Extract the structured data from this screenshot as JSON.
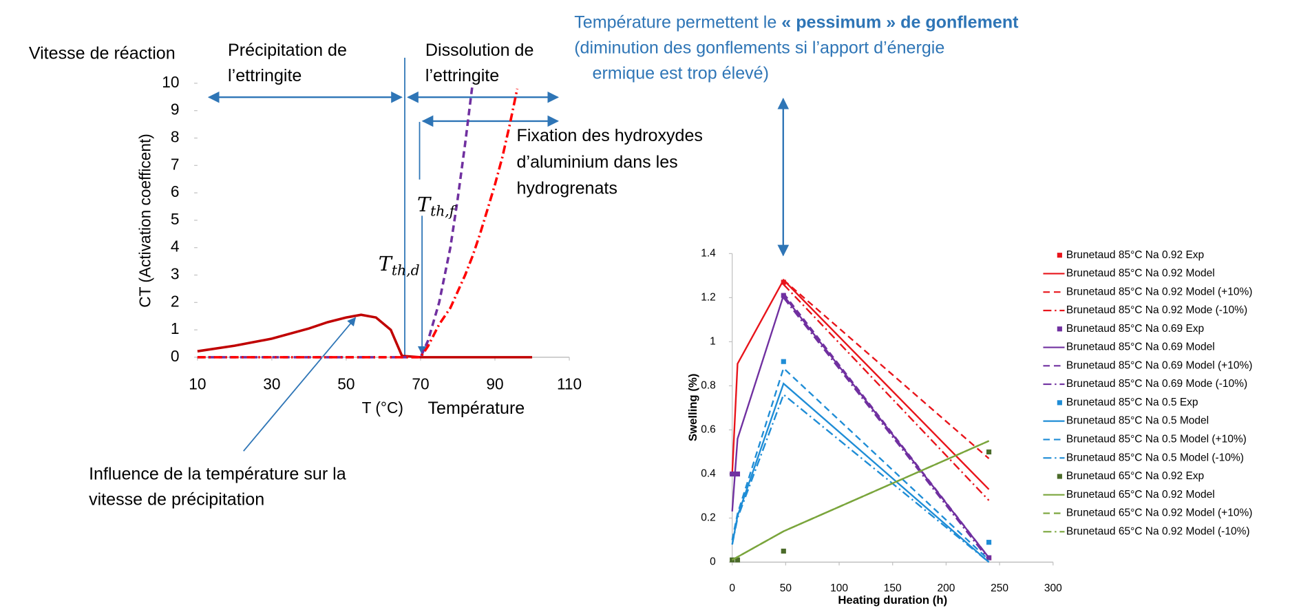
{
  "chart_data": [
    {
      "type": "line",
      "x_label": "T (°C)",
      "y_label": "CT (Activation coefficent)",
      "x": [
        10,
        20,
        30,
        40,
        45,
        50,
        54,
        58,
        62,
        65,
        70,
        72,
        75,
        78,
        80,
        82,
        84,
        86,
        88,
        90,
        92,
        94,
        96,
        100
      ],
      "xlim": [
        10,
        110
      ],
      "xticks": [
        10,
        30,
        50,
        70,
        90,
        110
      ],
      "ylim": [
        0,
        10
      ],
      "yticks": [
        0,
        1,
        2,
        3,
        4,
        5,
        6,
        7,
        8,
        9,
        10
      ],
      "series": [
        {
          "color": "#c00000",
          "style": "solid",
          "values": [
            0.22,
            0.42,
            0.68,
            1.05,
            1.28,
            1.45,
            1.55,
            1.45,
            1.0,
            0.05,
            0,
            0,
            0,
            0,
            0,
            0,
            0,
            0,
            0,
            0,
            0,
            0,
            0,
            0
          ]
        },
        {
          "color": "#7030a0",
          "style": "dashed",
          "values": [
            0,
            0,
            0,
            0,
            0,
            0,
            0,
            0,
            0,
            0,
            0,
            0.6,
            2,
            4,
            5.8,
            7.8,
            10,
            null,
            null,
            null,
            null,
            null,
            null,
            null
          ]
        },
        {
          "color": "#ff0000",
          "style": "dashdot",
          "values": [
            0,
            0,
            0,
            0,
            0,
            0,
            0,
            0,
            0,
            0,
            0,
            0.4,
            1.2,
            1.8,
            2.4,
            3,
            3.7,
            4.5,
            5.4,
            6.3,
            7.3,
            8.5,
            9.8,
            null
          ]
        }
      ],
      "annotations": [
        "Vitesse de réaction",
        "Précipitation de",
        "l’ettringite",
        "Dissolution de",
        "l’ettringite",
        "Fixation des hydroxydes",
        "d’aluminium dans les",
        "hydrogrenats",
        "Température",
        "Influence de la température sur la",
        "vitesse de précipitation"
      ],
      "math_labels": [
        {
          "main": "T",
          "sub": "th,d"
        },
        {
          "main": "T",
          "sub": "th,f"
        }
      ]
    },
    {
      "type": "line",
      "x_label": "Heating duration (h)",
      "y_label": "Swelling (%)",
      "xlim": [
        0,
        300
      ],
      "xticks": [
        0,
        50,
        100,
        150,
        200,
        250,
        300
      ],
      "ylim": [
        0,
        1.4
      ],
      "yticks": [
        0,
        0.2,
        0.4,
        0.6,
        0.8,
        1,
        1.2,
        1.4
      ],
      "annotations": [
        "Température permettent le ",
        "« pessimum » de gonflement",
        "(diminution des gonflements si l’apport d’énergie",
        "ermique est trop élevé)"
      ],
      "series": [
        {
          "name": "Brunetaud 85°C Na 0.92 Exp",
          "color": "#e8141b",
          "style": "marker",
          "x": [
            48,
            240
          ],
          "values": [
            1.27,
            0.02
          ]
        },
        {
          "name": "Brunetaud 85°C Na 0.92 Model",
          "color": "#e8141b",
          "style": "solid",
          "x": [
            0,
            5,
            48,
            240
          ],
          "values": [
            0.4,
            0.9,
            1.28,
            0.33
          ]
        },
        {
          "name": "Brunetaud 85°C Na 0.92 Model (+10%)",
          "color": "#e8141b",
          "style": "dashed",
          "x": [
            48,
            240
          ],
          "values": [
            1.28,
            0.47
          ]
        },
        {
          "name": "Brunetaud 85°C Na 0.92 Mode (-10%)",
          "color": "#e8141b",
          "style": "dashdot",
          "x": [
            48,
            240
          ],
          "values": [
            1.26,
            0.28
          ]
        },
        {
          "name": "Brunetaud 85°C Na 0.69 Exp",
          "color": "#7030a0",
          "style": "marker",
          "x": [
            0,
            5,
            48,
            240
          ],
          "values": [
            0.4,
            0.4,
            1.21,
            0.02
          ]
        },
        {
          "name": "Brunetaud 85°C Na 0.69 Model",
          "color": "#7030a0",
          "style": "solid",
          "x": [
            0,
            5,
            48,
            240
          ],
          "values": [
            0.23,
            0.56,
            1.21,
            0.02
          ]
        },
        {
          "name": "Brunetaud 85°C Na 0.69 Model (+10%)",
          "color": "#7030a0",
          "style": "dashed",
          "x": [
            48,
            240
          ],
          "values": [
            1.22,
            0.02
          ]
        },
        {
          "name": "Brunetaud 85°C Na 0.69 Mode (-10%)",
          "color": "#7030a0",
          "style": "dashdot",
          "x": [
            48,
            240
          ],
          "values": [
            1.2,
            0.01
          ]
        },
        {
          "name": "Brunetaud 85°C Na 0.5 Exp",
          "color": "#1f8dd6",
          "style": "marker",
          "x": [
            48,
            240
          ],
          "values": [
            0.91,
            0.09
          ]
        },
        {
          "name": "Brunetaud 85°C Na 0.5 Model",
          "color": "#1f8dd6",
          "style": "solid",
          "x": [
            0,
            5,
            48,
            240
          ],
          "values": [
            0.08,
            0.21,
            0.81,
            0
          ]
        },
        {
          "name": "Brunetaud 85°C Na 0.5 Model (+10%)",
          "color": "#1f8dd6",
          "style": "dashed",
          "x": [
            0,
            5,
            48,
            240
          ],
          "values": [
            0.1,
            0.22,
            0.88,
            0.01
          ]
        },
        {
          "name": "Brunetaud 85°C Na 0.5 Model (-10%)",
          "color": "#1f8dd6",
          "style": "dashdot",
          "x": [
            0,
            5,
            48,
            240
          ],
          "values": [
            0.08,
            0.2,
            0.76,
            0
          ]
        },
        {
          "name": "Brunetaud 65°C Na 0.92 Exp",
          "color": "#4b6b2a",
          "style": "marker",
          "x": [
            0,
            5,
            48,
            240
          ],
          "values": [
            0.01,
            0.01,
            0.05,
            0.5
          ]
        },
        {
          "name": "Brunetaud 65°C Na 0.92  Model",
          "color": "#7aa53c",
          "style": "solid",
          "x": [
            0,
            48,
            240
          ],
          "values": [
            0.01,
            0.14,
            0.55
          ]
        },
        {
          "name": "Brunetaud 65°C Na 0.92  Model (+10%)",
          "color": "#7aa53c",
          "style": "dashed",
          "x": [
            0,
            48,
            240
          ],
          "values": [
            0.01,
            0.14,
            0.55
          ]
        },
        {
          "name": "Brunetaud 65°C Na 0.92  Model (-10%)",
          "color": "#7aa53c",
          "style": "dashdot",
          "x": [
            0,
            48,
            240
          ],
          "values": [
            0.01,
            0.14,
            0.55
          ]
        }
      ]
    }
  ]
}
